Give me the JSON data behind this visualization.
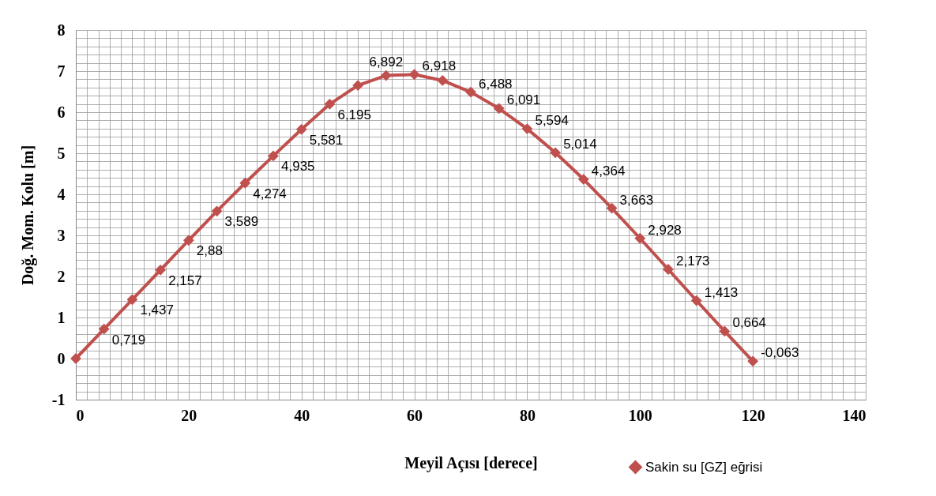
{
  "chart_data": {
    "type": "line",
    "xlabel": "Meyil Açısı [derece]",
    "ylabel": "Doğ. Mom. Kolu [m]",
    "x": [
      0,
      5,
      10,
      15,
      20,
      25,
      30,
      35,
      40,
      45,
      50,
      55,
      60,
      65,
      70,
      75,
      80,
      85,
      90,
      95,
      100,
      105,
      110,
      115,
      120
    ],
    "series": [
      {
        "name": "Sakin su [GZ] eğrisi",
        "color": "#c0504d",
        "values": [
          0,
          0.719,
          1.437,
          2.157,
          2.88,
          3.589,
          4.274,
          4.935,
          5.581,
          6.195,
          6.65,
          6.892,
          6.918,
          6.77,
          6.488,
          6.091,
          5.594,
          5.014,
          4.364,
          3.663,
          2.928,
          2.173,
          1.413,
          0.664,
          -0.063
        ],
        "value_labels": [
          null,
          "0,719",
          "1,437",
          "2,157",
          "2,88",
          "3,589",
          "4,274",
          "4,935",
          "5,581",
          "6,195",
          null,
          "6,892",
          "6,918",
          null,
          "6,488",
          "6,091",
          "5,594",
          "5,014",
          "4,364",
          "3,663",
          "2,928",
          "2,173",
          "1,413",
          "0,664",
          "-0,063"
        ]
      }
    ],
    "xlim": [
      0,
      140
    ],
    "ylim": [
      -1,
      8
    ],
    "xticks": [
      0,
      {
        "value": 2,
        "label": null
      },
      {
        "value": 4,
        "label": null
      },
      {
        "value": 6,
        "label": null
      },
      {
        "value": 8,
        "label": null
      },
      {
        "value": 10,
        "label": null
      },
      {
        "value": 12,
        "label": null
      },
      {
        "value": 14,
        "label": null
      },
      {
        "value": 16,
        "label": null
      },
      {
        "value": 18,
        "label": null
      },
      20,
      {
        "value": 22,
        "label": null
      },
      {
        "value": 24,
        "label": null
      },
      {
        "value": 26,
        "label": null
      },
      {
        "value": 28,
        "label": null
      },
      {
        "value": 30,
        "label": null
      },
      {
        "value": 32,
        "label": null
      },
      {
        "value": 34,
        "label": null
      },
      {
        "value": 36,
        "label": null
      },
      {
        "value": 38,
        "label": null
      },
      40,
      {
        "value": 42,
        "label": null
      },
      {
        "value": 44,
        "label": null
      },
      {
        "value": 46,
        "label": null
      },
      {
        "value": 48,
        "label": null
      },
      {
        "value": 50,
        "label": null
      },
      {
        "value": 52,
        "label": null
      },
      {
        "value": 54,
        "label": null
      },
      {
        "value": 56,
        "label": null
      },
      {
        "value": 58,
        "label": null
      },
      60,
      {
        "value": 62,
        "label": null
      },
      {
        "value": 64,
        "label": null
      },
      {
        "value": 66,
        "label": null
      },
      {
        "value": 68,
        "label": null
      },
      {
        "value": 70,
        "label": null
      },
      {
        "value": 72,
        "label": null
      },
      {
        "value": 74,
        "label": null
      },
      {
        "value": 76,
        "label": null
      },
      {
        "value": 78,
        "label": null
      },
      80,
      {
        "value": 82,
        "label": null
      },
      {
        "value": 84,
        "label": null
      },
      {
        "value": 86,
        "label": null
      },
      {
        "value": 88,
        "label": null
      },
      {
        "value": 90,
        "label": null
      },
      {
        "value": 92,
        "label": null
      },
      {
        "value": 94,
        "label": null
      },
      {
        "value": 96,
        "label": null
      },
      {
        "value": 98,
        "label": null
      },
      100,
      {
        "value": 102,
        "label": null
      },
      {
        "value": 104,
        "label": null
      },
      {
        "value": 106,
        "label": null
      },
      {
        "value": 108,
        "label": null
      },
      {
        "value": 110,
        "label": null
      },
      {
        "value": 112,
        "label": null
      },
      {
        "value": 114,
        "label": null
      },
      {
        "value": 116,
        "label": null
      },
      {
        "value": 118,
        "label": null
      },
      120,
      {
        "value": 122,
        "label": null
      },
      {
        "value": 124,
        "label": null
      },
      {
        "value": 126,
        "label": null
      },
      {
        "value": 128,
        "label": null
      },
      {
        "value": 130,
        "label": null
      },
      {
        "value": 132,
        "label": null
      },
      {
        "value": 134,
        "label": null
      },
      {
        "value": 136,
        "label": null
      },
      {
        "value": 138,
        "label": null
      },
      140
    ],
    "yticks": [
      -1,
      {
        "value": -0.8,
        "label": null
      },
      {
        "value": -0.6,
        "label": null
      },
      {
        "value": -0.4,
        "label": null
      },
      {
        "value": -0.2,
        "label": null
      },
      0,
      {
        "value": 0.2,
        "label": null
      },
      {
        "value": 0.4,
        "label": null
      },
      {
        "value": 0.6,
        "label": null
      },
      {
        "value": 0.8,
        "label": null
      },
      1,
      {
        "value": 1.2,
        "label": null
      },
      {
        "value": 1.4,
        "label": null
      },
      {
        "value": 1.6,
        "label": null
      },
      {
        "value": 1.8,
        "label": null
      },
      2,
      {
        "value": 2.2,
        "label": null
      },
      {
        "value": 2.4,
        "label": null
      },
      {
        "value": 2.6,
        "label": null
      },
      {
        "value": 2.8,
        "label": null
      },
      3,
      {
        "value": 3.2,
        "label": null
      },
      {
        "value": 3.4,
        "label": null
      },
      {
        "value": 3.6,
        "label": null
      },
      {
        "value": 3.8,
        "label": null
      },
      4,
      {
        "value": 4.2,
        "label": null
      },
      {
        "value": 4.4,
        "label": null
      },
      {
        "value": 4.6,
        "label": null
      },
      {
        "value": 4.8,
        "label": null
      },
      5,
      {
        "value": 5.2,
        "label": null
      },
      {
        "value": 5.4,
        "label": null
      },
      {
        "value": 5.6,
        "label": null
      },
      {
        "value": 5.8,
        "label": null
      },
      6,
      {
        "value": 6.2,
        "label": null
      },
      {
        "value": 6.4,
        "label": null
      },
      {
        "value": 6.6,
        "label": null
      },
      {
        "value": 6.8,
        "label": null
      },
      7,
      {
        "value": 7.2,
        "label": null
      },
      {
        "value": 7.4,
        "label": null
      },
      {
        "value": 7.6,
        "label": null
      },
      {
        "value": 7.8,
        "label": null
      },
      8
    ],
    "grid": true,
    "legend": "bottom right",
    "marker": "diamond",
    "line_style": "solid"
  }
}
